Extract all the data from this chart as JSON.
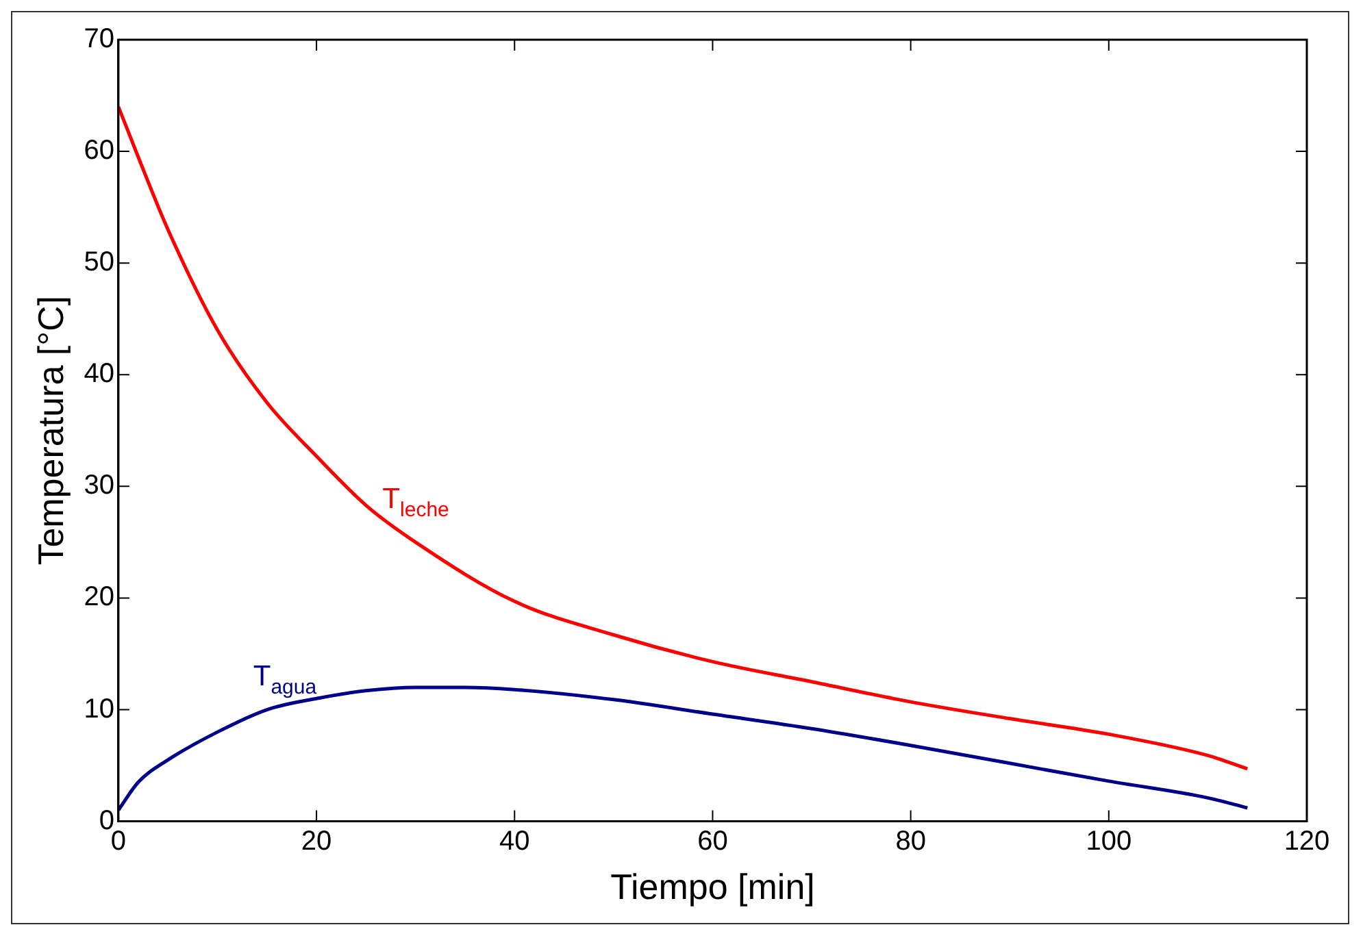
{
  "chart_data": {
    "type": "line",
    "xlabel": "Tiempo [min]",
    "ylabel": "Temperatura [°C]",
    "xlim": [
      0,
      120
    ],
    "xticks": [
      0,
      20,
      40,
      60,
      80,
      100,
      120
    ],
    "ylim": [
      0,
      70
    ],
    "yticks": [
      0,
      10,
      20,
      30,
      40,
      50,
      60,
      70
    ],
    "grid": false,
    "legend": false,
    "marker": "none",
    "line_style": "solid",
    "series": [
      {
        "name": "T$_{leche}$",
        "color": "#ff0000",
        "x": [
          0,
          2,
          5,
          10,
          15,
          20,
          25,
          30,
          40,
          50,
          60,
          70,
          80,
          90,
          100,
          110,
          114
        ],
        "values": [
          64,
          59.5,
          53,
          44,
          37.5,
          32.7,
          28.3,
          25,
          19.7,
          16.7,
          14.3,
          12.5,
          10.7,
          9.2,
          7.8,
          5.9,
          4.7
        ]
      },
      {
        "name": "T$_{agua}$",
        "color": "#00008b",
        "x": [
          0,
          2,
          5,
          10,
          15,
          20,
          25,
          30,
          35,
          40,
          50,
          60,
          70,
          80,
          90,
          100,
          110,
          114
        ],
        "values": [
          1,
          3.5,
          5.5,
          8,
          10,
          11,
          11.7,
          12,
          12,
          11.8,
          10.9,
          9.6,
          8.3,
          6.8,
          5.2,
          3.6,
          2.1,
          1.2
        ]
      }
    ]
  }
}
